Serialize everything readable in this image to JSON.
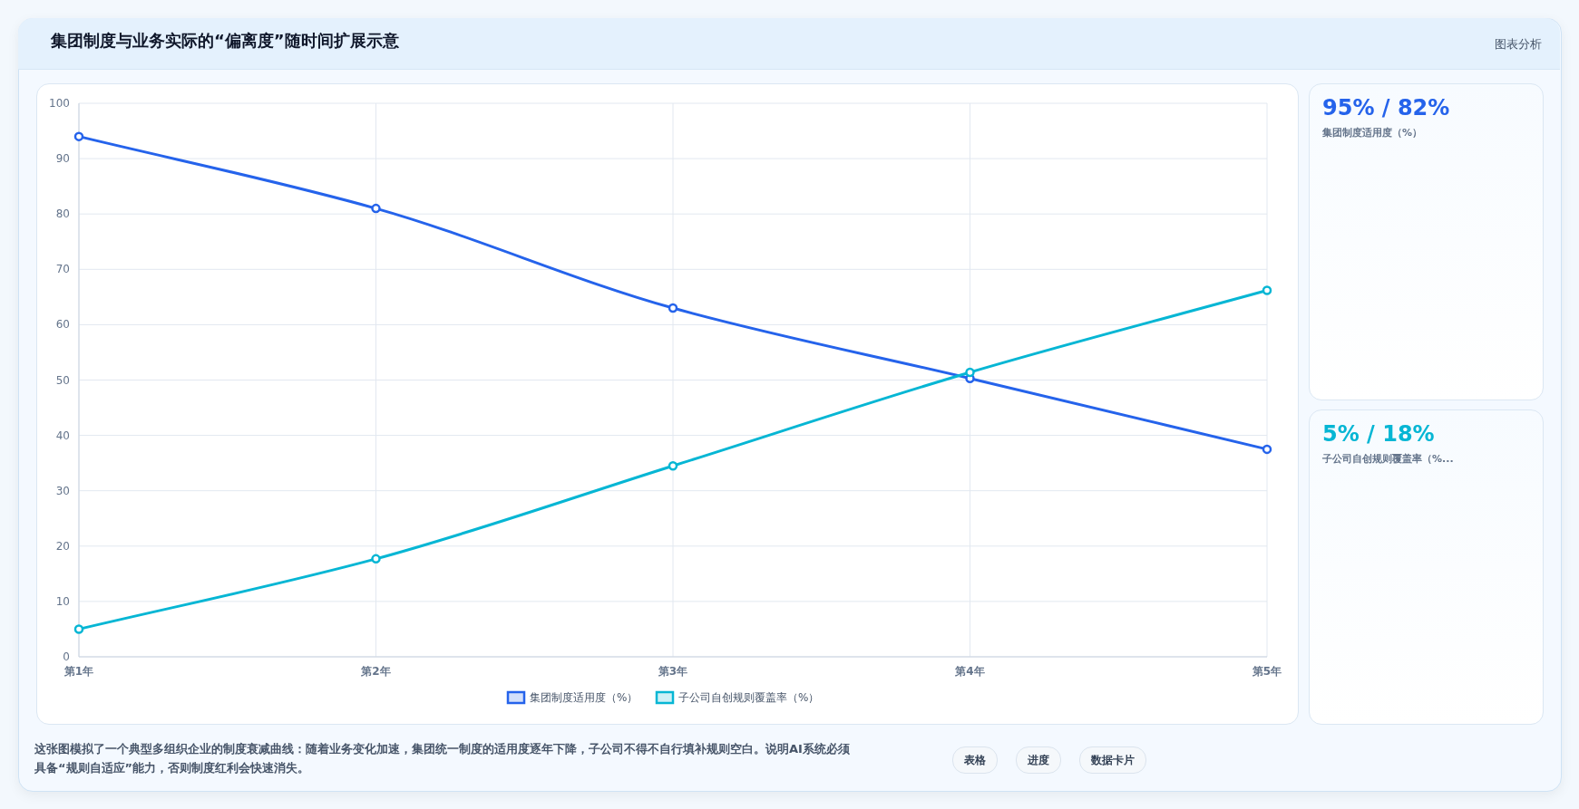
{
  "chart_data": [
    {
      "type": "line",
      "title": "集团制度与业务实际的“偏离度”随时间扩展示意",
      "categories": [
        "第1年",
        "第2年",
        "第3年",
        "第4年",
        "第5年"
      ],
      "series": [
        {
          "name": "集团制度适用度（%）",
          "color": "#2563eb",
          "values": [
            94,
            81,
            63,
            50.3,
            37.5
          ]
        },
        {
          "name": "子公司自创规则覆盖率（%）",
          "color": "#06b6d4",
          "values": [
            5,
            17.7,
            34.5,
            51.4,
            66.2
          ]
        }
      ],
      "ylim": [
        0,
        100
      ],
      "yticks": [
        0,
        10,
        20,
        30,
        40,
        50,
        60,
        70,
        80,
        90,
        100
      ],
      "grid": true,
      "legend": "bottom",
      "marker": "circle",
      "line_style": "solid",
      "annotations": [
        "图表分析",
        "这张图模拟了一个典型多组织企业的制度衰减曲线：随着业务变化加速，集团统一制度的适用度逐年下降，子公司不得不自行填补规则空白。说明AI系统必须具备“规则自适应”能力，否则制度红利会快速消失。",
        "表格",
        "进度",
        "数据卡片"
      ]
    },
    {
      "type": "other",
      "title": "95% / 82%",
      "subtitle": "集团制度适用度（%）"
    },
    {
      "type": "other",
      "title": "5% / 18%",
      "subtitle": "子公司自创规则覆盖率（%..."
    }
  ]
}
